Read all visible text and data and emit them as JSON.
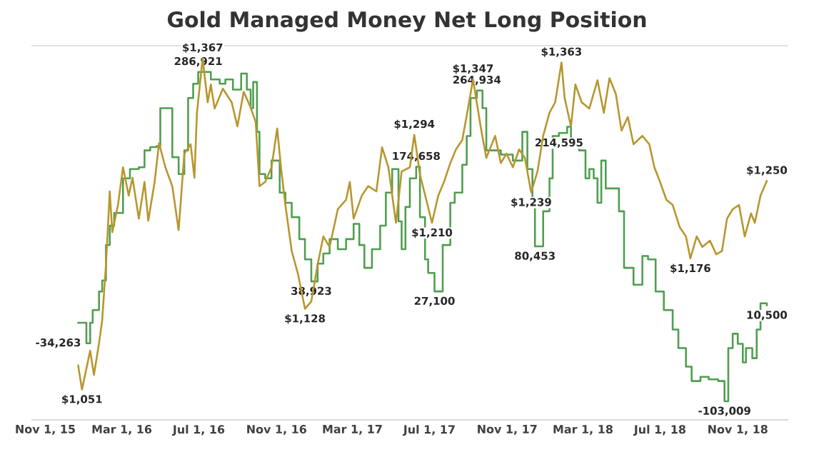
{
  "chart_data": {
    "type": "line",
    "title": "Gold Managed Money Net Long Position",
    "xlim": [
      "2015-10-10",
      "2019-01-20"
    ],
    "xticks": [
      {
        "value": "2015-11-01",
        "label": "Nov 1, 15"
      },
      {
        "value": "2016-03-01",
        "label": "Mar 1, 16"
      },
      {
        "value": "2016-07-01",
        "label": "Jul 1, 16"
      },
      {
        "value": "2016-11-01",
        "label": "Nov 1, 16"
      },
      {
        "value": "2017-03-01",
        "label": "Mar 1, 17"
      },
      {
        "value": "2017-07-01",
        "label": "Jul 1, 17"
      },
      {
        "value": "2017-11-01",
        "label": "Nov 1, 17"
      },
      {
        "value": "2018-03-01",
        "label": "Mar 1, 18"
      },
      {
        "value": "2018-07-01",
        "label": "Jul 1, 18"
      },
      {
        "value": "2018-11-01",
        "label": "Nov 1, 18"
      }
    ],
    "ylim": [
      -125000,
      318000
    ],
    "y2lim": [
      1022,
      1379
    ],
    "tick_labels": "x",
    "marker": "none",
    "line_style": "solid",
    "series": [
      {
        "type": "step",
        "axis": "y",
        "color": "#4f9e4f",
        "x": [
          "2015-12-23",
          "2016-01-05",
          "2016-01-11",
          "2016-01-15",
          "2016-01-25",
          "2016-01-30",
          "2016-02-05",
          "2016-02-11",
          "2016-02-18",
          "2016-03-03",
          "2016-03-14",
          "2016-03-28",
          "2016-04-06",
          "2016-04-15",
          "2016-04-25",
          "2016-05-01",
          "2016-05-20",
          "2016-05-30",
          "2016-06-08",
          "2016-06-14",
          "2016-06-22",
          "2016-06-30",
          "2016-07-20",
          "2016-08-03",
          "2016-08-12",
          "2016-08-24",
          "2016-09-06",
          "2016-09-15",
          "2016-09-21",
          "2016-09-25",
          "2016-10-01",
          "2016-10-05",
          "2016-10-14",
          "2016-10-24",
          "2016-11-06",
          "2016-11-15",
          "2016-11-25",
          "2016-12-07",
          "2016-12-16",
          "2016-12-26",
          "2017-01-05",
          "2017-01-14",
          "2017-01-24",
          "2017-02-06",
          "2017-02-19",
          "2017-03-03",
          "2017-03-12",
          "2017-03-20",
          "2017-04-01",
          "2017-04-14",
          "2017-04-23",
          "2017-05-03",
          "2017-05-13",
          "2017-05-18",
          "2017-05-24",
          "2017-05-31",
          "2017-06-10",
          "2017-06-16",
          "2017-06-24",
          "2017-06-29",
          "2017-07-09",
          "2017-07-22",
          "2017-08-03",
          "2017-08-10",
          "2017-08-22",
          "2017-08-29",
          "2017-09-04",
          "2017-09-14",
          "2017-09-23",
          "2017-09-29",
          "2017-10-22",
          "2017-11-10",
          "2017-11-25",
          "2017-12-03",
          "2017-12-11",
          "2017-12-15",
          "2017-12-28",
          "2018-01-07",
          "2018-01-12",
          "2018-01-22",
          "2018-02-04",
          "2018-02-10",
          "2018-02-23",
          "2018-03-05",
          "2018-03-11",
          "2018-03-18",
          "2018-03-24",
          "2018-03-30",
          "2018-04-06",
          "2018-04-27",
          "2018-05-05",
          "2018-05-20",
          "2018-06-03",
          "2018-06-12",
          "2018-06-24",
          "2018-07-07",
          "2018-07-21",
          "2018-07-30",
          "2018-08-11",
          "2018-08-20",
          "2018-09-03",
          "2018-09-16",
          "2018-10-01",
          "2018-10-11",
          "2018-10-17",
          "2018-10-24",
          "2018-11-01",
          "2018-11-09",
          "2018-11-14",
          "2018-11-24",
          "2018-12-01",
          "2018-12-07",
          "2018-12-17"
        ],
        "values": [
          -10000,
          -34263,
          -10000,
          5000,
          27000,
          40000,
          82000,
          105000,
          120000,
          161000,
          172000,
          174000,
          194000,
          198000,
          199000,
          244000,
          186000,
          166000,
          194000,
          256000,
          273000,
          286921,
          278000,
          273000,
          278000,
          266000,
          285000,
          266000,
          244000,
          275000,
          216000,
          166000,
          161000,
          182000,
          144000,
          132000,
          115000,
          89000,
          65000,
          38923,
          60000,
          72000,
          89000,
          77000,
          89000,
          107000,
          82000,
          55000,
          77000,
          105000,
          144000,
          172000,
          110000,
          77000,
          127000,
          161000,
          174658,
          115000,
          65000,
          49000,
          27100,
          82000,
          132000,
          144000,
          177000,
          211000,
          256000,
          264934,
          244000,
          194000,
          189000,
          182000,
          216000,
          172000,
          127000,
          80453,
          122000,
          161000,
          211000,
          214595,
          222000,
          206000,
          194000,
          161000,
          172000,
          161000,
          132000,
          182000,
          149000,
          122000,
          55000,
          35000,
          69000,
          65000,
          27000,
          5000,
          -18000,
          -40000,
          -62000,
          -79000,
          -74000,
          -77000,
          -79000,
          -103009,
          -40000,
          -23000,
          -35000,
          -57000,
          -40000,
          -52000,
          -18000,
          13000,
          10500
        ],
        "value_labels": [
          null,
          "-34,263",
          null,
          null,
          null,
          null,
          null,
          null,
          null,
          null,
          null,
          null,
          null,
          null,
          null,
          null,
          null,
          null,
          null,
          null,
          null,
          "286,921",
          null,
          null,
          null,
          null,
          null,
          null,
          null,
          null,
          null,
          null,
          null,
          null,
          null,
          null,
          null,
          null,
          null,
          "38,923",
          null,
          null,
          null,
          null,
          null,
          null,
          null,
          null,
          null,
          null,
          null,
          null,
          null,
          null,
          null,
          null,
          "174,658",
          null,
          null,
          null,
          "27,100",
          null,
          null,
          null,
          null,
          null,
          null,
          "264,934",
          null,
          null,
          null,
          null,
          null,
          null,
          null,
          "80,453",
          null,
          null,
          null,
          "214,595",
          null,
          null,
          null,
          null,
          null,
          null,
          null,
          null,
          null,
          null,
          null,
          null,
          null,
          null,
          null,
          null,
          null,
          null,
          null,
          null,
          null,
          null,
          null,
          "-103,009",
          null,
          null,
          null,
          null,
          null,
          null,
          null,
          null,
          "10,500"
        ]
      },
      {
        "axis": "y2",
        "color": "#b8962e",
        "x": [
          "2015-12-23",
          "2015-12-29",
          "2016-01-11",
          "2016-01-17",
          "2016-01-25",
          "2016-01-30",
          "2016-02-05",
          "2016-02-11",
          "2016-02-15",
          "2016-02-24",
          "2016-03-03",
          "2016-03-12",
          "2016-03-18",
          "2016-03-28",
          "2016-04-06",
          "2016-04-12",
          "2016-04-22",
          "2016-04-29",
          "2016-05-09",
          "2016-05-20",
          "2016-05-30",
          "2016-06-08",
          "2016-06-18",
          "2016-06-24",
          "2016-06-28",
          "2016-07-07",
          "2016-07-15",
          "2016-07-20",
          "2016-07-26",
          "2016-08-08",
          "2016-08-22",
          "2016-08-31",
          "2016-09-10",
          "2016-09-21",
          "2016-09-29",
          "2016-10-05",
          "2016-10-14",
          "2016-10-24",
          "2016-11-02",
          "2016-11-08",
          "2016-11-15",
          "2016-11-25",
          "2016-12-05",
          "2016-12-16",
          "2016-12-26",
          "2017-01-05",
          "2017-01-14",
          "2017-01-24",
          "2017-02-06",
          "2017-02-19",
          "2017-02-25",
          "2017-03-03",
          "2017-03-16",
          "2017-03-26",
          "2017-04-08",
          "2017-04-17",
          "2017-04-27",
          "2017-05-09",
          "2017-05-18",
          "2017-05-31",
          "2017-06-07",
          "2017-06-16",
          "2017-06-26",
          "2017-07-05",
          "2017-07-15",
          "2017-07-24",
          "2017-08-03",
          "2017-08-12",
          "2017-08-22",
          "2017-08-31",
          "2017-09-08",
          "2017-09-20",
          "2017-09-29",
          "2017-10-13",
          "2017-10-22",
          "2017-10-31",
          "2017-11-10",
          "2017-11-20",
          "2017-11-29",
          "2017-12-09",
          "2017-12-19",
          "2017-12-28",
          "2018-01-07",
          "2018-01-16",
          "2018-01-26",
          "2018-01-31",
          "2018-02-10",
          "2018-02-17",
          "2018-02-27",
          "2018-03-11",
          "2018-03-24",
          "2018-04-03",
          "2018-04-12",
          "2018-04-22",
          "2018-05-01",
          "2018-05-11",
          "2018-05-20",
          "2018-06-03",
          "2018-06-14",
          "2018-06-22",
          "2018-07-01",
          "2018-07-11",
          "2018-07-21",
          "2018-08-01",
          "2018-08-11",
          "2018-08-18",
          "2018-08-28",
          "2018-09-06",
          "2018-09-18",
          "2018-09-28",
          "2018-10-07",
          "2018-10-15",
          "2018-10-24",
          "2018-11-03",
          "2018-11-12",
          "2018-11-22",
          "2018-11-28",
          "2018-12-07",
          "2018-12-17"
        ],
        "values": [
          1074,
          1051,
          1088,
          1065,
          1095,
          1117,
          1170,
          1240,
          1201,
          1227,
          1263,
          1236,
          1253,
          1214,
          1249,
          1212,
          1249,
          1286,
          1263,
          1245,
          1203,
          1276,
          1285,
          1253,
          1315,
          1367,
          1325,
          1342,
          1319,
          1338,
          1325,
          1302,
          1335,
          1320,
          1306,
          1245,
          1249,
          1263,
          1300,
          1263,
          1227,
          1183,
          1161,
          1128,
          1135,
          1170,
          1197,
          1187,
          1223,
          1232,
          1249,
          1214,
          1236,
          1245,
          1240,
          1282,
          1263,
          1210,
          1259,
          1263,
          1294,
          1256,
          1232,
          1210,
          1236,
          1249,
          1267,
          1280,
          1289,
          1319,
          1347,
          1302,
          1272,
          1293,
          1267,
          1276,
          1263,
          1280,
          1272,
          1239,
          1259,
          1293,
          1315,
          1325,
          1363,
          1329,
          1302,
          1342,
          1325,
          1319,
          1346,
          1315,
          1348,
          1333,
          1298,
          1311,
          1285,
          1293,
          1285,
          1263,
          1249,
          1232,
          1227,
          1206,
          1197,
          1176,
          1197,
          1187,
          1193,
          1180,
          1183,
          1214,
          1223,
          1227,
          1197,
          1219,
          1210,
          1236,
          1250
        ],
        "value_labels": [
          null,
          "$1,051",
          null,
          null,
          null,
          null,
          null,
          null,
          null,
          null,
          null,
          null,
          null,
          null,
          null,
          null,
          null,
          null,
          null,
          null,
          null,
          null,
          null,
          null,
          null,
          "$1,367",
          null,
          null,
          null,
          null,
          null,
          null,
          null,
          null,
          null,
          null,
          null,
          null,
          null,
          null,
          null,
          null,
          null,
          "$1,128",
          null,
          null,
          null,
          null,
          null,
          null,
          null,
          null,
          null,
          null,
          null,
          null,
          null,
          null,
          null,
          null,
          "$1,294",
          null,
          null,
          "$1,210",
          null,
          null,
          null,
          null,
          null,
          null,
          "$1,347",
          null,
          null,
          null,
          null,
          null,
          null,
          null,
          null,
          "$1,239",
          null,
          null,
          null,
          null,
          "$1,363",
          null,
          null,
          null,
          null,
          null,
          null,
          null,
          null,
          null,
          null,
          null,
          null,
          null,
          null,
          null,
          null,
          null,
          null,
          null,
          null,
          "$1,176",
          null,
          null,
          null,
          null,
          null,
          null,
          null,
          null,
          null,
          null,
          null,
          null,
          "$1,250"
        ]
      }
    ]
  }
}
